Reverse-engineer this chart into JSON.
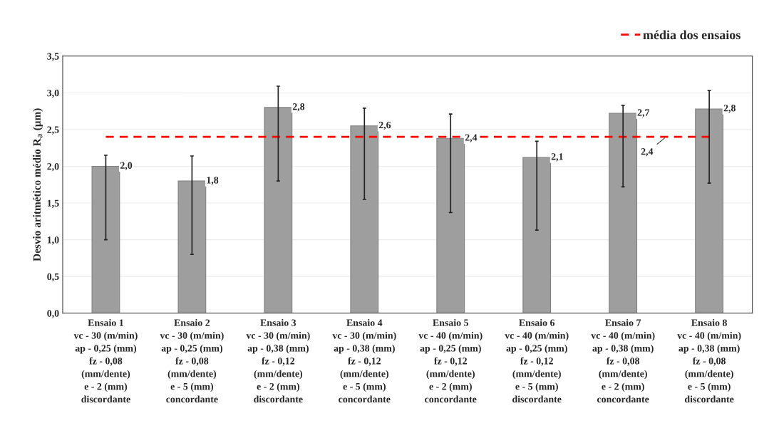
{
  "chart_data": {
    "type": "bar",
    "ylabel": "Desvio aritmético médio R$_{a}$ (µm)",
    "categories": [
      "Ensaio 1\nvc - 30 (m/min)\nap - 0,25 (mm)\nfz - 0,08\n(mm/dente)\ne - 2 (mm)\ndiscordante",
      "Ensaio 2\nvc - 30 (m/min)\nap - 0,25 (mm)\nfz - 0,08\n(mm/dente)\ne - 5 (mm)\nconcordante",
      "Ensaio 3\nvc - 30 (m/min)\nap - 0,38 (mm)\nfz - 0,12\n(mm/dente)\ne - 2 (mm)\ndiscordante",
      "Ensaio 4\nvc - 30 (m/min)\nap - 0,38 (mm)\nfz - 0,12\n(mm/dente)\ne - 5 (mm)\nconcordante",
      "Ensaio 5\nvc - 40 (m/min)\nap - 0,25 (mm)\nfz - 0,12\n(mm/dente)\ne - 2 (mm)\nconcordante",
      "Ensaio 6\nvc - 40 (m/min)\nap - 0,25 (mm)\nfz - 0,12\n(mm/dente)\ne - 5 (mm)\ndiscordante",
      "Ensaio 7\nvc - 40 (m/min)\nap - 0,38 (mm)\nfz - 0,08\n(mm/dente)\ne - 2 (mm)\nconcordante",
      "Ensaio 8\nvc - 40 (m/min)\nap - 0,38 (mm)\nfz - 0,08\n(mm/dente)\ne - 5 (mm)\ndiscordante"
    ],
    "values": [
      2.0,
      1.8,
      2.8,
      2.55,
      2.38,
      2.12,
      2.72,
      2.78
    ],
    "errors": [
      [
        1.0,
        2.15
      ],
      [
        0.8,
        2.14
      ],
      [
        1.8,
        3.09
      ],
      [
        1.55,
        2.79
      ],
      [
        1.37,
        2.71
      ],
      [
        1.13,
        2.34
      ],
      [
        1.72,
        2.83
      ],
      [
        1.77,
        3.03
      ]
    ],
    "value_labels": [
      "2,0",
      "1,8",
      "2,8",
      "2,6",
      "2,4",
      "2,1",
      "2,7",
      "2,8"
    ],
    "color": "#9e9e9e",
    "ylim": [
      0,
      3.5
    ],
    "yticks": [
      {
        "value": 0,
        "label": "0,0"
      },
      {
        "value": 0.5,
        "label": "0,5"
      },
      {
        "value": 1,
        "label": "1,0"
      },
      {
        "value": 1.5,
        "label": "1,5"
      },
      {
        "value": 2,
        "label": "2,0"
      },
      {
        "value": 2.5,
        "label": "2,5"
      },
      {
        "value": 3,
        "label": "3,0"
      },
      {
        "value": 3.5,
        "label": "3,5"
      }
    ],
    "ref_lines": [
      {
        "axis": "y",
        "value": 2.4,
        "label": "média dos ensaios",
        "color": "#ff0000",
        "line_style": "dashed"
      }
    ],
    "annotations": [
      {
        "text": "2,4",
        "y": 2.4
      }
    ],
    "grid": "y",
    "legend": "top right"
  }
}
